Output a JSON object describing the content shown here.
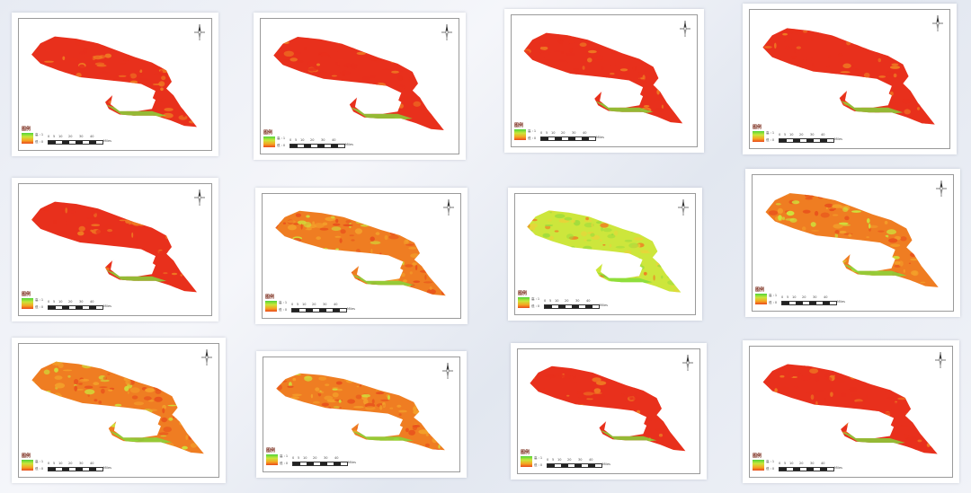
{
  "legend": {
    "title": "图例",
    "high_label": "高 : 1",
    "low_label": "低 : 0",
    "colors": [
      "#4fd43a",
      "#c9e63a",
      "#f5a623",
      "#e84a1c"
    ]
  },
  "scalebar": {
    "ticks": [
      "0",
      "5",
      "10",
      "20",
      "30",
      "40"
    ],
    "unit": "Miles"
  },
  "palette": {
    "red": "#e8301c",
    "orange": "#ef7d22",
    "yellow_green": "#cde63c",
    "green": "#55d63a"
  },
  "maps": [
    {
      "name": "map-1",
      "dominant": "red"
    },
    {
      "name": "map-2",
      "dominant": "red"
    },
    {
      "name": "map-3",
      "dominant": "red"
    },
    {
      "name": "map-4",
      "dominant": "red"
    },
    {
      "name": "map-5",
      "dominant": "red"
    },
    {
      "name": "map-6",
      "dominant": "orange"
    },
    {
      "name": "map-7",
      "dominant": "yellow-green"
    },
    {
      "name": "map-8",
      "dominant": "orange"
    },
    {
      "name": "map-9",
      "dominant": "orange"
    },
    {
      "name": "map-10",
      "dominant": "orange"
    },
    {
      "name": "map-11",
      "dominant": "red"
    },
    {
      "name": "map-12",
      "dominant": "red"
    }
  ]
}
